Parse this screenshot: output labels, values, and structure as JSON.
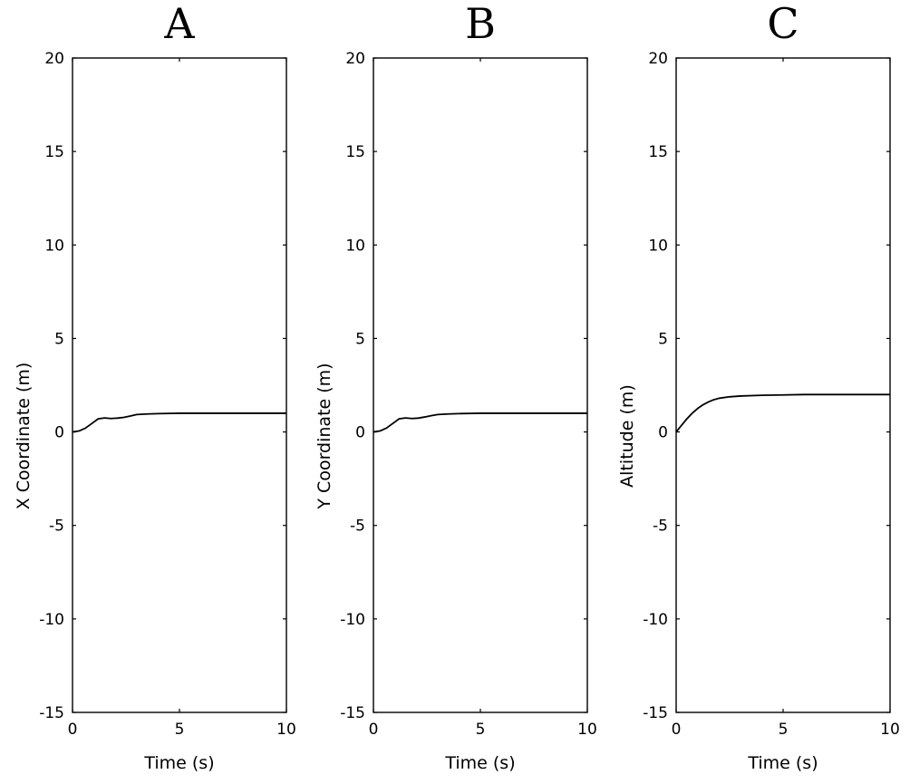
{
  "chart_data": [
    {
      "type": "line",
      "title": "A",
      "xlabel": "Time (s)",
      "ylabel": "X Coordinate (m)",
      "xlim": [
        0,
        10
      ],
      "ylim": [
        -15,
        20
      ],
      "xticks": [
        "0",
        "5",
        "10"
      ],
      "yticks": [
        "20",
        "15",
        "10",
        "5",
        "0",
        "-5",
        "-10",
        "-15"
      ],
      "grid": false,
      "series": [
        {
          "x": [
            0,
            0.3,
            0.6,
            0.9,
            1.2,
            1.5,
            1.8,
            2.1,
            2.4,
            2.7,
            3.0,
            3.5,
            4,
            5,
            6,
            7,
            8,
            9,
            10
          ],
          "values": [
            0,
            0.05,
            0.2,
            0.45,
            0.7,
            0.75,
            0.72,
            0.74,
            0.78,
            0.85,
            0.93,
            0.96,
            0.98,
            1.0,
            1.0,
            1.0,
            1.0,
            1.0,
            1.0
          ]
        }
      ]
    },
    {
      "type": "line",
      "title": "B",
      "xlabel": "Time (s)",
      "ylabel": "Y Coordinate (m)",
      "xlim": [
        0,
        10
      ],
      "ylim": [
        -15,
        20
      ],
      "xticks": [
        "0",
        "5",
        "10"
      ],
      "yticks": [
        "20",
        "15",
        "10",
        "5",
        "0",
        "-5",
        "-10",
        "-15"
      ],
      "grid": false,
      "series": [
        {
          "x": [
            0,
            0.3,
            0.6,
            0.9,
            1.2,
            1.5,
            1.8,
            2.1,
            2.4,
            2.7,
            3.0,
            3.5,
            4,
            5,
            6,
            7,
            8,
            9,
            10
          ],
          "values": [
            0,
            0.05,
            0.2,
            0.45,
            0.7,
            0.75,
            0.72,
            0.74,
            0.8,
            0.87,
            0.93,
            0.96,
            0.98,
            1.0,
            1.0,
            1.0,
            1.0,
            1.0,
            1.0
          ]
        }
      ]
    },
    {
      "type": "line",
      "title": "C",
      "xlabel": "Time (s)",
      "ylabel": "Altitude (m)",
      "xlim": [
        0,
        10
      ],
      "ylim": [
        -15,
        20
      ],
      "xticks": [
        "0",
        "5",
        "10"
      ],
      "yticks": [
        "20",
        "15",
        "10",
        "5",
        "0",
        "-5",
        "-10",
        "-15"
      ],
      "grid": false,
      "series": [
        {
          "x": [
            0,
            0.25,
            0.5,
            0.75,
            1.0,
            1.25,
            1.5,
            1.75,
            2.0,
            2.5,
            3.0,
            4,
            5,
            6,
            7,
            8,
            9,
            10
          ],
          "values": [
            0,
            0.35,
            0.7,
            1.0,
            1.25,
            1.45,
            1.6,
            1.72,
            1.8,
            1.88,
            1.92,
            1.96,
            1.98,
            2.0,
            2.0,
            2.0,
            2.0,
            2.0
          ]
        }
      ]
    }
  ]
}
